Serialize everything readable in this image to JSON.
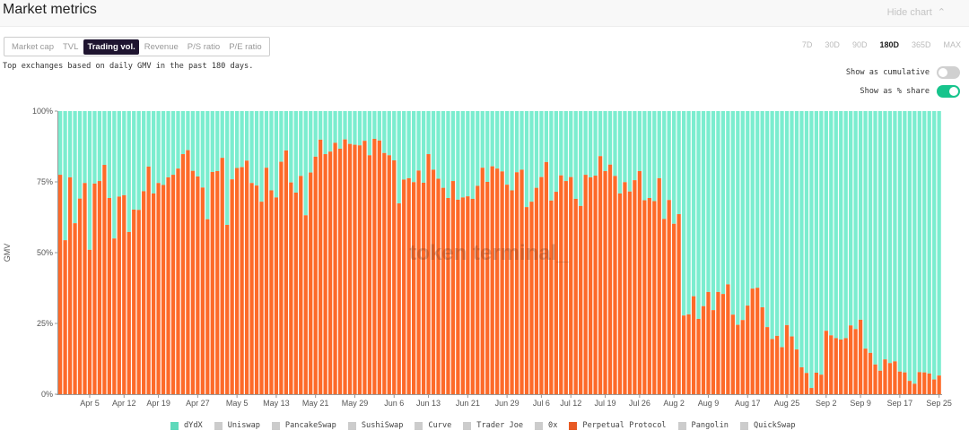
{
  "header": {
    "title": "Market metrics",
    "hide_label": "Hide chart",
    "hide_icon": "chevron-up-icon"
  },
  "tabs": [
    {
      "label": "Market cap"
    },
    {
      "label": "TVL"
    },
    {
      "label": "Trading vol.",
      "active": true
    },
    {
      "label": "Revenue"
    },
    {
      "label": "P/S ratio"
    },
    {
      "label": "P/E ratio"
    }
  ],
  "description": "Top exchanges based on daily GMV in the past 180 days.",
  "ranges": [
    {
      "label": "7D"
    },
    {
      "label": "30D"
    },
    {
      "label": "90D"
    },
    {
      "label": "180D",
      "active": true
    },
    {
      "label": "365D"
    },
    {
      "label": "MAX"
    }
  ],
  "toggles": [
    {
      "label": "Show as cumulative",
      "on": false
    },
    {
      "label": "Show as % share",
      "on": true
    }
  ],
  "watermark": "token terminal_",
  "colors": {
    "dydx": "#7bedcf",
    "perp": "#fd6a29",
    "inactive": "#cccccc"
  },
  "chart_data": {
    "type": "bar",
    "stacked": true,
    "ylabel": "GMV",
    "ylim": [
      0,
      100
    ],
    "yticks": [
      "0%",
      "25%",
      "50%",
      "75%",
      "100%"
    ],
    "start_date": "Mar 30",
    "end_date": "Sep 25",
    "xticks": [
      {
        "label": "Apr 5",
        "index": 6
      },
      {
        "label": "Apr 12",
        "index": 13
      },
      {
        "label": "Apr 19",
        "index": 20
      },
      {
        "label": "Apr 27",
        "index": 28
      },
      {
        "label": "May 5",
        "index": 36
      },
      {
        "label": "May 13",
        "index": 44
      },
      {
        "label": "May 21",
        "index": 52
      },
      {
        "label": "May 29",
        "index": 60
      },
      {
        "label": "Jun 6",
        "index": 68
      },
      {
        "label": "Jun 13",
        "index": 75
      },
      {
        "label": "Jun 21",
        "index": 83
      },
      {
        "label": "Jun 29",
        "index": 91
      },
      {
        "label": "Jul 6",
        "index": 98
      },
      {
        "label": "Jul 12",
        "index": 104
      },
      {
        "label": "Jul 19",
        "index": 111
      },
      {
        "label": "Jul 26",
        "index": 118
      },
      {
        "label": "Aug 2",
        "index": 125
      },
      {
        "label": "Aug 9",
        "index": 132
      },
      {
        "label": "Aug 17",
        "index": 140
      },
      {
        "label": "Aug 25",
        "index": 148
      },
      {
        "label": "Sep 2",
        "index": 156
      },
      {
        "label": "Sep 9",
        "index": 163
      },
      {
        "label": "Sep 17",
        "index": 171
      },
      {
        "label": "Sep 25",
        "index": 179
      }
    ],
    "legend": [
      {
        "name": "dYdX",
        "color": "#5fd9bb"
      },
      {
        "name": "Uniswap",
        "color": "#cccccc"
      },
      {
        "name": "PancakeSwap",
        "color": "#cccccc"
      },
      {
        "name": "SushiSwap",
        "color": "#cccccc"
      },
      {
        "name": "Curve",
        "color": "#cccccc"
      },
      {
        "name": "Trader Joe",
        "color": "#cccccc"
      },
      {
        "name": "0x",
        "color": "#cccccc"
      },
      {
        "name": "Perpetual Protocol",
        "color": "#e85a24"
      },
      {
        "name": "Pangolin",
        "color": "#cccccc"
      },
      {
        "name": "QuickSwap",
        "color": "#cccccc"
      }
    ],
    "series": [
      {
        "name": "Perpetual Protocol",
        "values": [
          77.5,
          54.4,
          76.6,
          60.4,
          69.1,
          74.6,
          51,
          74.4,
          75.3,
          81,
          69.3,
          55,
          69.8,
          70.3,
          57.3,
          65.2,
          65.1,
          71.7,
          80.4,
          70.9,
          74.6,
          73.9,
          76.6,
          77.5,
          79.7,
          84.8,
          86.2,
          78.9,
          76.9,
          73,
          61.8,
          78.5,
          78.8,
          83.5,
          59.8,
          75.9,
          79.9,
          80.2,
          82.5,
          74.6,
          73.7,
          68,
          80,
          72,
          69.5,
          82.1,
          86.1,
          74.8,
          71.2,
          77.1,
          63.2,
          78.3,
          83.9,
          89.9,
          84.8,
          85.7,
          88.8,
          86.7,
          90,
          88.4,
          88.1,
          87.9,
          89.5,
          84.4,
          90.2,
          89.6,
          85.2,
          84.4,
          82.6,
          67.4,
          75.8,
          76.3,
          74.9,
          79,
          74.7,
          84.8,
          79.3,
          76.1,
          72.9,
          69.3,
          75.3,
          68.7,
          69.5,
          69.9,
          69,
          73.6,
          80,
          75,
          80.5,
          79.7,
          78.7,
          74,
          72,
          78.4,
          79.3,
          66.1,
          68,
          72.9,
          76.7,
          82,
          68.4,
          71.5,
          77.3,
          75.3,
          76.7,
          69,
          66.5,
          77.5,
          76.6,
          77.2,
          84.1,
          78.8,
          81.1,
          77.1,
          70.9,
          74.9,
          71.6,
          75.6,
          78.8,
          68.5,
          69.3,
          68.2,
          76.3,
          61.9,
          68.6,
          60.2,
          63.6,
          27.8,
          28.2,
          34.6,
          26.6,
          31.1,
          36.1,
          29.7,
          36.1,
          35.4,
          38.8,
          28.1,
          24.5,
          26.2,
          31.3,
          37.3,
          37.6,
          30.7,
          23.7,
          19.5,
          20.6,
          16.6,
          24.4,
          20.4,
          15.8,
          9.5,
          7.5,
          2.2,
          7.6,
          6.9,
          22.4,
          20.8,
          19.8,
          19.3,
          19.8,
          24.3,
          23,
          26.3,
          16.1,
          14.6,
          10.5,
          8.3,
          12.3,
          11,
          11.6,
          8,
          7.7,
          4.7,
          3.7,
          7.8,
          7.7,
          7.3,
          5.2,
          6.6
        ]
      },
      {
        "name": "dYdX",
        "values": "remainder to 100%"
      }
    ]
  }
}
